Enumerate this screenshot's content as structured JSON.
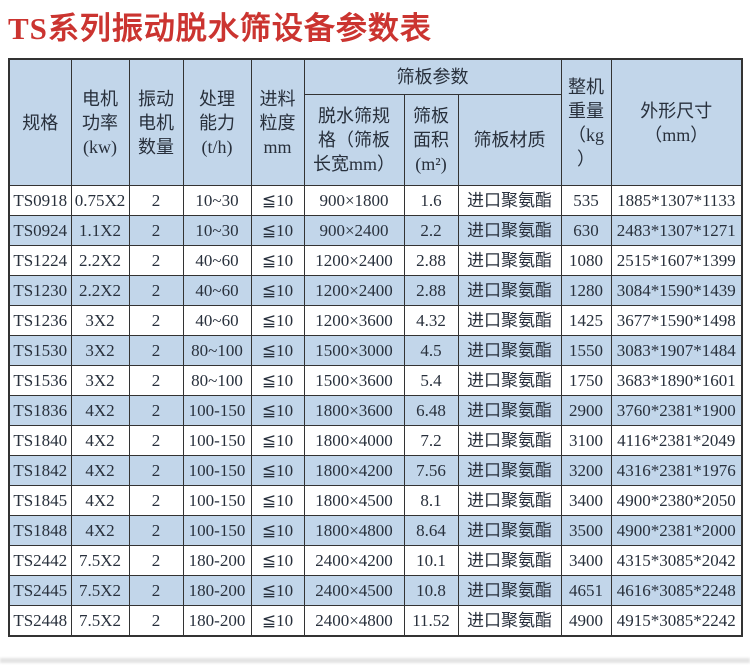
{
  "title": {
    "text": "TS系列振动脱水筛设备参数表",
    "color": "#cb3430"
  },
  "colors": {
    "header_background": "#c2d6ea",
    "alt_row_background": "#c2d6ea",
    "row_background": "#ffffff",
    "border": "#333333",
    "title_red": "#cb3430",
    "text": "#28303c"
  },
  "table": {
    "header": {
      "spec": "规格",
      "motor_power": "电机\n功率\n(kw)",
      "motor_count": "振动\n电机\n数量",
      "capacity": "处理\n能力\n(t/h)",
      "feed_size": "进料\n粒度\nmm",
      "screen_params_group": "筛板参数",
      "screen_size": "脱水筛规\n格（筛板\n长宽mm）",
      "screen_area": "筛板\n面积\n(m²)",
      "screen_material": "筛板材质",
      "machine_weight": "整机\n重量\n（kg\n）",
      "dimensions": "外形尺寸\n（mm）"
    },
    "rows": [
      [
        "TS0918",
        "0.75X2",
        "2",
        "10~30",
        "≦10",
        "900×1800",
        "1.6",
        "进口聚氨酯",
        "535",
        "1885*1307*1133"
      ],
      [
        "TS0924",
        "1.1X2",
        "2",
        "10~30",
        "≦10",
        "900×2400",
        "2.2",
        "进口聚氨酯",
        "630",
        "2483*1307*1271"
      ],
      [
        "TS1224",
        "2.2X2",
        "2",
        "40~60",
        "≦10",
        "1200×2400",
        "2.88",
        "进口聚氨酯",
        "1080",
        "2515*1607*1399"
      ],
      [
        "TS1230",
        "2.2X2",
        "2",
        "40~60",
        "≦10",
        "1200×2400",
        "2.88",
        "进口聚氨酯",
        "1280",
        "3084*1590*1439"
      ],
      [
        "TS1236",
        "3X2",
        "2",
        "40~60",
        "≦10",
        "1200×3600",
        "4.32",
        "进口聚氨酯",
        "1425",
        "3677*1590*1498"
      ],
      [
        "TS1530",
        "3X2",
        "2",
        "80~100",
        "≦10",
        "1500×3000",
        "4.5",
        "进口聚氨酯",
        "1550",
        "3083*1907*1484"
      ],
      [
        "TS1536",
        "3X2",
        "2",
        "80~100",
        "≦10",
        "1500×3600",
        "5.4",
        "进口聚氨酯",
        "1750",
        "3683*1890*1601"
      ],
      [
        "TS1836",
        "4X2",
        "2",
        "100-150",
        "≦10",
        "1800×3600",
        "6.48",
        "进口聚氨酯",
        "2900",
        "3760*2381*1900"
      ],
      [
        "TS1840",
        "4X2",
        "2",
        "100-150",
        "≦10",
        "1800×4000",
        "7.2",
        "进口聚氨酯",
        "3100",
        "4116*2381*2049"
      ],
      [
        "TS1842",
        "4X2",
        "2",
        "100-150",
        "≦10",
        "1800×4200",
        "7.56",
        "进口聚氨酯",
        "3200",
        "4316*2381*1976"
      ],
      [
        "TS1845",
        "4X2",
        "2",
        "100-150",
        "≦10",
        "1800×4500",
        "8.1",
        "进口聚氨酯",
        "3400",
        "4900*2380*2050"
      ],
      [
        "TS1848",
        "4X2",
        "2",
        "100-150",
        "≦10",
        "1800×4800",
        "8.64",
        "进口聚氨酯",
        "3500",
        "4900*2381*2000"
      ],
      [
        "TS2442",
        "7.5X2",
        "2",
        "180-200",
        "≦10",
        "2400×4200",
        "10.1",
        "进口聚氨酯",
        "3400",
        "4315*3085*2042"
      ],
      [
        "TS2445",
        "7.5X2",
        "2",
        "180-200",
        "≦10",
        "2400×4500",
        "10.8",
        "进口聚氨酯",
        "4651",
        "4616*3085*2248"
      ],
      [
        "TS2448",
        "7.5X2",
        "2",
        "180-200",
        "≦10",
        "2400×4800",
        "11.52",
        "进口聚氨酯",
        "4900",
        "4915*3085*2242"
      ]
    ]
  }
}
